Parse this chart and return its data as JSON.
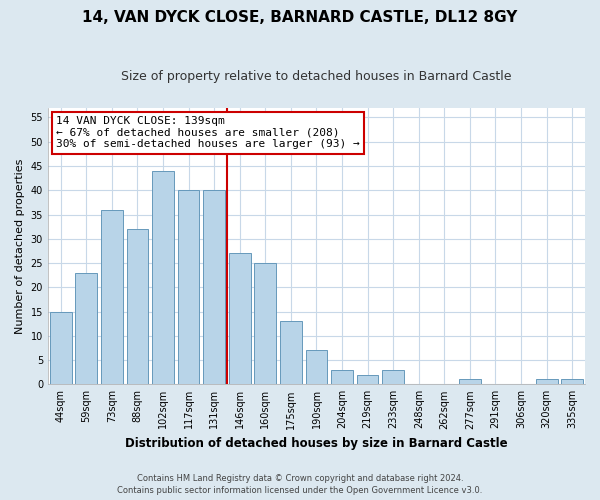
{
  "title": "14, VAN DYCK CLOSE, BARNARD CASTLE, DL12 8GY",
  "subtitle": "Size of property relative to detached houses in Barnard Castle",
  "xlabel": "Distribution of detached houses by size in Barnard Castle",
  "ylabel": "Number of detached properties",
  "bar_labels": [
    "44sqm",
    "59sqm",
    "73sqm",
    "88sqm",
    "102sqm",
    "117sqm",
    "131sqm",
    "146sqm",
    "160sqm",
    "175sqm",
    "190sqm",
    "204sqm",
    "219sqm",
    "233sqm",
    "248sqm",
    "262sqm",
    "277sqm",
    "291sqm",
    "306sqm",
    "320sqm",
    "335sqm"
  ],
  "bar_values": [
    15,
    23,
    36,
    32,
    44,
    40,
    40,
    27,
    25,
    13,
    7,
    3,
    2,
    3,
    0,
    0,
    1,
    0,
    0,
    1,
    1
  ],
  "bar_color": "#b8d4e8",
  "bar_edge_color": "#6699bb",
  "vline_color": "#cc0000",
  "ylim": [
    0,
    57
  ],
  "yticks": [
    0,
    5,
    10,
    15,
    20,
    25,
    30,
    35,
    40,
    45,
    50,
    55
  ],
  "annotation_title": "14 VAN DYCK CLOSE: 139sqm",
  "annotation_line1": "← 67% of detached houses are smaller (208)",
  "annotation_line2": "30% of semi-detached houses are larger (93) →",
  "annotation_box_color": "#ffffff",
  "annotation_box_edge": "#cc0000",
  "footer_line1": "Contains HM Land Registry data © Crown copyright and database right 2024.",
  "footer_line2": "Contains public sector information licensed under the Open Government Licence v3.0.",
  "fig_bg_color": "#dce8f0",
  "plot_bg_color": "#ffffff",
  "title_fontsize": 11,
  "subtitle_fontsize": 9,
  "vline_x": 6.5
}
